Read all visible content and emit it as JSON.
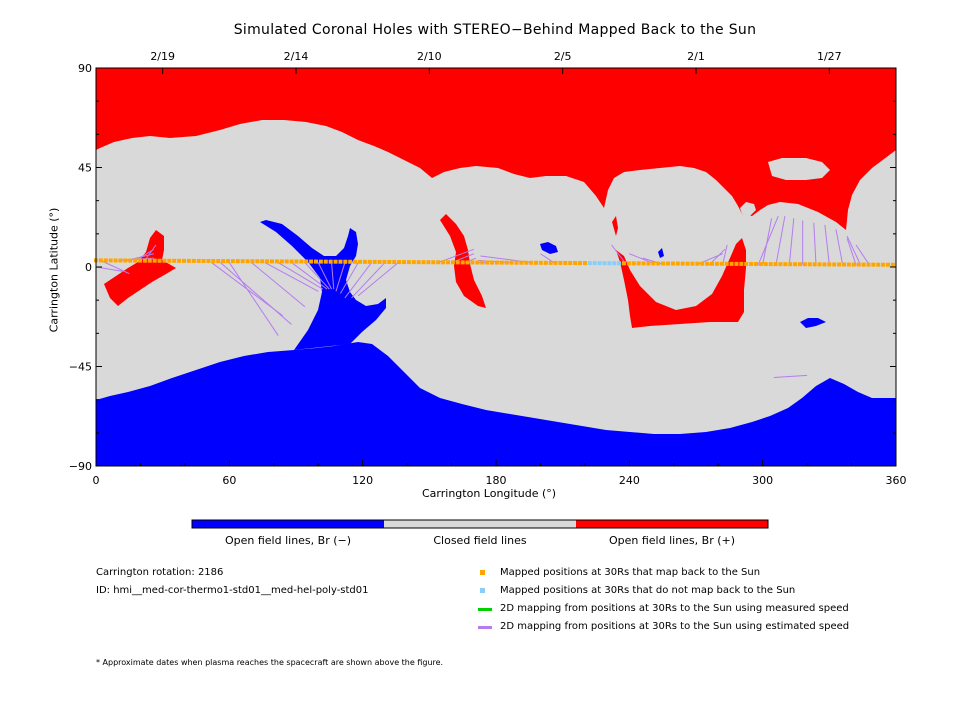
{
  "chart_data": {
    "type": "map",
    "title": "Simulated Coronal Holes with STEREO−Behind Mapped Back to the Sun",
    "xlabel": "Carrington Longitude (°)",
    "ylabel": "Carrington Latitude (°)",
    "xlim": [
      0,
      360
    ],
    "ylim": [
      -90,
      90
    ],
    "x_ticks": [
      0,
      60,
      120,
      180,
      240,
      300,
      360
    ],
    "y_ticks": [
      -90,
      -45,
      0,
      45,
      90
    ],
    "y_tick_labels": [
      "−90",
      "−45",
      "0",
      "45",
      "90"
    ],
    "top_axis_dates": [
      {
        "label": "2/19",
        "lon": 30
      },
      {
        "label": "2/14",
        "lon": 90
      },
      {
        "label": "2/10",
        "lon": 150
      },
      {
        "label": "2/5",
        "lon": 210
      },
      {
        "label": "2/1",
        "lon": 270
      },
      {
        "label": "1/27",
        "lon": 330
      }
    ],
    "regions": {
      "closed": {
        "label": "Closed field lines",
        "color": "#d9d9d9"
      },
      "open_negative": {
        "label": "Open field lines, Br (−)",
        "color": "#0000ff"
      },
      "open_positive": {
        "label": "Open field lines, Br (+)",
        "color": "#ff0000"
      }
    },
    "trajectory": {
      "lat_start": 3,
      "lat_end": 1,
      "mapped_color": "#ffa500",
      "unmapped_color": "#87cefa",
      "unmapped_lon_range": [
        222,
        236
      ]
    },
    "mapping_lines": [
      {
        "from": [
          10,
          3
        ],
        "to": [
          26,
          4
        ]
      },
      {
        "from": [
          14,
          3
        ],
        "to": [
          26,
          6
        ]
      },
      {
        "from": [
          18,
          3
        ],
        "to": [
          26,
          8
        ]
      },
      {
        "from": [
          22,
          3
        ],
        "to": [
          27,
          10
        ]
      },
      {
        "from": [
          2,
          3
        ],
        "to": [
          15,
          -3
        ]
      },
      {
        "from": [
          0,
          0
        ],
        "to": [
          12,
          -2
        ]
      },
      {
        "from": [
          52,
          2
        ],
        "to": [
          84,
          -22
        ]
      },
      {
        "from": [
          56,
          2
        ],
        "to": [
          88,
          -26
        ]
      },
      {
        "from": [
          60,
          2
        ],
        "to": [
          82,
          -31
        ]
      },
      {
        "from": [
          70,
          2
        ],
        "to": [
          94,
          -18
        ]
      },
      {
        "from": [
          76,
          2
        ],
        "to": [
          100,
          -11
        ]
      },
      {
        "from": [
          82,
          2
        ],
        "to": [
          102,
          -10
        ]
      },
      {
        "from": [
          88,
          2
        ],
        "to": [
          104,
          -10
        ]
      },
      {
        "from": [
          94,
          2
        ],
        "to": [
          105,
          -10
        ]
      },
      {
        "from": [
          100,
          2
        ],
        "to": [
          106,
          -10
        ]
      },
      {
        "from": [
          106,
          2
        ],
        "to": [
          107,
          -10
        ]
      },
      {
        "from": [
          112,
          2
        ],
        "to": [
          108,
          -11
        ]
      },
      {
        "from": [
          118,
          2
        ],
        "to": [
          110,
          -12
        ]
      },
      {
        "from": [
          124,
          2
        ],
        "to": [
          112,
          -14
        ]
      },
      {
        "from": [
          130,
          2
        ],
        "to": [
          115,
          -14
        ]
      },
      {
        "from": [
          136,
          2
        ],
        "to": [
          118,
          -13
        ]
      },
      {
        "from": [
          154,
          2
        ],
        "to": [
          170,
          8
        ]
      },
      {
        "from": [
          160,
          2
        ],
        "to": [
          170,
          6
        ]
      },
      {
        "from": [
          166,
          2
        ],
        "to": [
          171,
          4
        ]
      },
      {
        "from": [
          176,
          2
        ],
        "to": [
          171,
          2
        ]
      },
      {
        "from": [
          186,
          2
        ],
        "to": [
          172,
          3
        ]
      },
      {
        "from": [
          196,
          2
        ],
        "to": [
          173,
          5
        ]
      },
      {
        "from": [
          206,
          2
        ],
        "to": [
          200,
          6
        ]
      },
      {
        "from": [
          238,
          2
        ],
        "to": [
          232,
          10
        ]
      },
      {
        "from": [
          250,
          2
        ],
        "to": [
          240,
          6
        ]
      },
      {
        "from": [
          256,
          1
        ],
        "to": [
          246,
          4
        ]
      },
      {
        "from": [
          270,
          1
        ],
        "to": [
          282,
          6
        ]
      },
      {
        "from": [
          276,
          1
        ],
        "to": [
          283,
          8
        ]
      },
      {
        "from": [
          282,
          1
        ],
        "to": [
          284,
          10
        ]
      },
      {
        "from": [
          298,
          1
        ],
        "to": [
          307,
          23
        ]
      },
      {
        "from": [
          306,
          1
        ],
        "to": [
          310,
          23
        ]
      },
      {
        "from": [
          312,
          1
        ],
        "to": [
          314,
          22
        ]
      },
      {
        "from": [
          318,
          1
        ],
        "to": [
          318,
          21
        ]
      },
      {
        "from": [
          324,
          1
        ],
        "to": [
          323,
          20
        ]
      },
      {
        "from": [
          330,
          1
        ],
        "to": [
          328,
          19
        ]
      },
      {
        "from": [
          336,
          1
        ],
        "to": [
          333,
          17
        ]
      },
      {
        "from": [
          342,
          1
        ],
        "to": [
          338,
          13
        ]
      },
      {
        "from": [
          348,
          1
        ],
        "to": [
          342,
          10
        ]
      },
      {
        "from": [
          344,
          1
        ],
        "to": [
          338,
          14
        ]
      },
      {
        "from": [
          305,
          -50
        ],
        "to": [
          320,
          -49
        ]
      },
      {
        "from": [
          300,
          1
        ],
        "to": [
          304,
          22
        ]
      }
    ]
  },
  "colorbar": {
    "labels": [
      "Open field lines, Br (−)",
      "Closed field lines",
      "Open field lines, Br (+)"
    ],
    "colors": [
      "#0000ff",
      "#d9d9d9",
      "#ff0000"
    ]
  },
  "info": {
    "rotation": "Carrington rotation: 2186",
    "id": "ID: hmi__med-cor-thermo1-std01__med-hel-poly-std01"
  },
  "legend": [
    {
      "label": "Mapped positions at 30Rs that map back to the Sun",
      "color": "#ffa500",
      "kind": "square"
    },
    {
      "label": "Mapped positions at 30Rs that do not map back to the Sun",
      "color": "#87cefa",
      "kind": "square"
    },
    {
      "label": "2D mapping from positions at 30Rs to the Sun using measured speed",
      "color": "#00d000",
      "kind": "line"
    },
    {
      "label": "2D mapping from positions at 30Rs to the Sun using estimated speed",
      "color": "#b57cf0",
      "kind": "line"
    }
  ],
  "footnote": "* Approximate dates when plasma reaches the spacecraft are shown above the figure."
}
